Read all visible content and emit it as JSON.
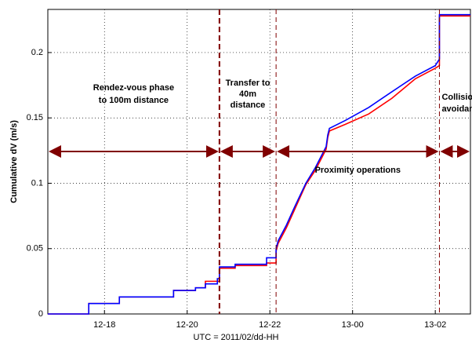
{
  "chart_data": {
    "type": "line",
    "xlabel": "UTC = 2011/02/dd-HH",
    "ylabel": "Cumulative dV (m/s)",
    "xlim": [
      16.63,
      26.85
    ],
    "xticks": [
      {
        "value": 18,
        "label": "12-18"
      },
      {
        "value": 20,
        "label": "12-20"
      },
      {
        "value": 22,
        "label": "12-22"
      },
      {
        "value": 24,
        "label": "13-00"
      },
      {
        "value": 26,
        "label": "13-02"
      }
    ],
    "ylim": [
      0,
      0.233
    ],
    "yticks": [
      0,
      0.05,
      0.1,
      0.15,
      0.2
    ],
    "grid": true,
    "series": [
      {
        "color": "#ff0000",
        "x": [
          16.63,
          17.62,
          17.62,
          18.36,
          18.36,
          19.67,
          19.67,
          20.2,
          20.2,
          20.44,
          20.44,
          20.73,
          20.73,
          20.78,
          20.78,
          21.16,
          21.16,
          21.92,
          21.92,
          22.15,
          22.15,
          22.2,
          22.4,
          22.6,
          22.87,
          23.1,
          23.36,
          23.4,
          23.44,
          23.82,
          24.39,
          24.95,
          25.52,
          26.0,
          26.1,
          26.1,
          26.85
        ],
        "values": [
          0,
          0,
          0.008,
          0.008,
          0.013,
          0.013,
          0.018,
          0.018,
          0.02,
          0.02,
          0.025,
          0.025,
          0.025,
          0.025,
          0.035,
          0.035,
          0.037,
          0.037,
          0.039,
          0.039,
          0.048,
          0.054,
          0.066,
          0.08,
          0.099,
          0.11,
          0.126,
          0.135,
          0.14,
          0.145,
          0.153,
          0.165,
          0.18,
          0.188,
          0.19,
          0.228,
          0.228
        ]
      },
      {
        "color": "#0000ff",
        "x": [
          16.63,
          17.62,
          17.62,
          18.36,
          18.36,
          19.67,
          19.67,
          20.2,
          20.2,
          20.44,
          20.44,
          20.73,
          20.73,
          20.78,
          20.78,
          21.16,
          21.16,
          21.92,
          21.92,
          22.15,
          22.15,
          22.2,
          22.4,
          22.6,
          22.87,
          23.1,
          23.36,
          23.4,
          23.44,
          23.82,
          24.39,
          24.95,
          25.52,
          26.0,
          26.1,
          26.1,
          26.85
        ],
        "values": [
          0,
          0,
          0.008,
          0.008,
          0.013,
          0.013,
          0.018,
          0.018,
          0.02,
          0.02,
          0.023,
          0.023,
          0.027,
          0.027,
          0.036,
          0.036,
          0.038,
          0.038,
          0.043,
          0.043,
          0.05,
          0.056,
          0.068,
          0.082,
          0.1,
          0.112,
          0.128,
          0.137,
          0.142,
          0.148,
          0.158,
          0.17,
          0.182,
          0.19,
          0.195,
          0.229,
          0.229
        ]
      }
    ],
    "phase_boundaries": [
      {
        "x": 20.78,
        "style": "thick"
      },
      {
        "x": 22.15,
        "style": "thin"
      },
      {
        "x": 26.1,
        "style": "thin"
      }
    ],
    "boundary_color": "#800000",
    "phases": [
      {
        "lines": [
          "Rendez-vous phase",
          "to 100m distance"
        ]
      },
      {
        "lines": [
          "Transfer to",
          "40m",
          "distance"
        ]
      },
      {
        "lines": [
          "Proximity operations"
        ]
      },
      {
        "lines": [
          "Collision",
          "avoidance"
        ]
      }
    ]
  }
}
